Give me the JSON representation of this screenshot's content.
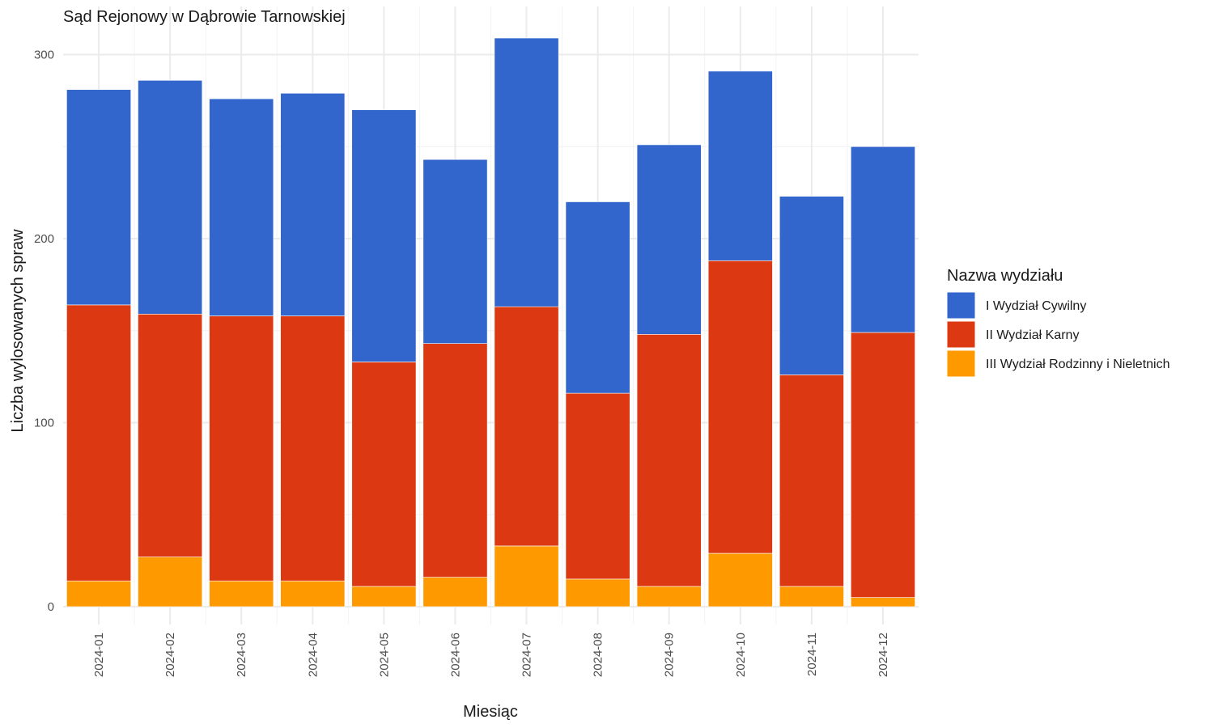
{
  "chart_data": {
    "type": "bar",
    "stacked": true,
    "title": "Sąd Rejonowy w Dąbrowie Tarnowskiej",
    "xlabel": "Miesiąc",
    "ylabel": "Liczba wylosowanych spraw",
    "ylim": [
      0,
      310
    ],
    "yticks": [
      0,
      100,
      200,
      300
    ],
    "grid": true,
    "legend_position": "right",
    "legend_title": "Nazwa wydziału",
    "categories": [
      "2024-01",
      "2024-02",
      "2024-03",
      "2024-04",
      "2024-05",
      "2024-06",
      "2024-07",
      "2024-08",
      "2024-09",
      "2024-10",
      "2024-11",
      "2024-12"
    ],
    "series": [
      {
        "name": "I Wydział Cywilny",
        "color": "#3366CC",
        "values": [
          117,
          127,
          118,
          121,
          137,
          100,
          146,
          104,
          103,
          103,
          97,
          101
        ]
      },
      {
        "name": "II Wydział Karny",
        "color": "#DC3912",
        "values": [
          150,
          132,
          144,
          144,
          122,
          127,
          130,
          101,
          137,
          159,
          115,
          144
        ]
      },
      {
        "name": "III Wydział Rodzinny i Nieletnich",
        "color": "#FF9900",
        "values": [
          14,
          27,
          14,
          14,
          11,
          16,
          33,
          15,
          11,
          29,
          11,
          5
        ]
      }
    ]
  }
}
